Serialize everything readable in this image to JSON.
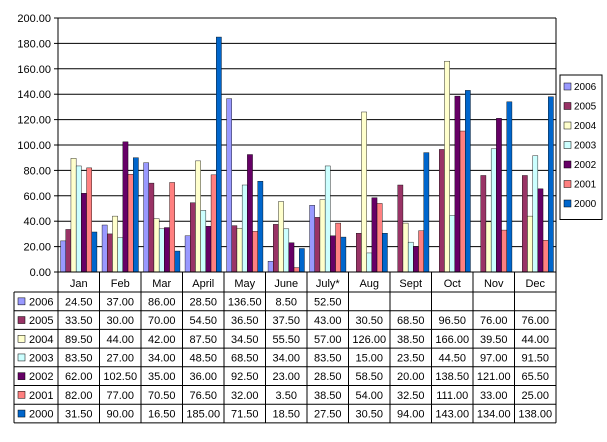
{
  "chart_data": {
    "type": "bar",
    "categories": [
      "Jan",
      "Feb",
      "Mar",
      "April",
      "May",
      "June",
      "July*",
      "Aug",
      "Sept",
      "Oct",
      "Nov",
      "Dec"
    ],
    "ylim": [
      0,
      200
    ],
    "yticks": [
      "0.00",
      "20.00",
      "40.00",
      "60.00",
      "80.00",
      "100.00",
      "120.00",
      "140.00",
      "160.00",
      "180.00",
      "200.00"
    ],
    "grid": true,
    "legend_position": "right",
    "series": [
      {
        "name": "2006",
        "color": "#9999FF",
        "values": [
          24.5,
          37.0,
          86.0,
          28.5,
          136.5,
          8.5,
          52.5,
          null,
          null,
          null,
          null,
          null
        ],
        "labels": [
          "24.50",
          "37.00",
          "86.00",
          "28.50",
          "136.50",
          "8.50",
          "52.50",
          "",
          "",
          "",
          "",
          ""
        ]
      },
      {
        "name": "2005",
        "color": "#993366",
        "values": [
          33.5,
          30.0,
          70.0,
          54.5,
          36.5,
          37.5,
          43.0,
          30.5,
          68.5,
          96.5,
          76.0,
          76.0
        ],
        "labels": [
          "33.50",
          "30.00",
          "70.00",
          "54.50",
          "36.50",
          "37.50",
          "43.00",
          "30.50",
          "68.50",
          "96.50",
          "76.00",
          "76.00"
        ]
      },
      {
        "name": "2004",
        "color": "#FFFFCC",
        "values": [
          89.5,
          44.0,
          42.0,
          87.5,
          34.5,
          55.5,
          57.0,
          126.0,
          38.5,
          166.0,
          39.5,
          44.0
        ],
        "labels": [
          "89.50",
          "44.00",
          "42.00",
          "87.50",
          "34.50",
          "55.50",
          "57.00",
          "126.00",
          "38.50",
          "166.00",
          "39.50",
          "44.00"
        ]
      },
      {
        "name": "2003",
        "color": "#CCFFFF",
        "values": [
          83.5,
          27.0,
          34.0,
          48.5,
          68.5,
          34.0,
          83.5,
          15.0,
          23.5,
          44.5,
          97.0,
          91.5
        ],
        "labels": [
          "83.50",
          "27.00",
          "34.00",
          "48.50",
          "68.50",
          "34.00",
          "83.50",
          "15.00",
          "23.50",
          "44.50",
          "97.00",
          "91.50"
        ]
      },
      {
        "name": "2002",
        "color": "#660066",
        "values": [
          62.0,
          102.5,
          35.0,
          36.0,
          92.5,
          23.0,
          28.5,
          58.5,
          20.0,
          138.5,
          121.0,
          65.5
        ],
        "labels": [
          "62.00",
          "102.50",
          "35.00",
          "36.00",
          "92.50",
          "23.00",
          "28.50",
          "58.50",
          "20.00",
          "138.50",
          "121.00",
          "65.50"
        ]
      },
      {
        "name": "2001",
        "color": "#FF8080",
        "values": [
          82.0,
          77.0,
          70.5,
          76.5,
          32.0,
          3.5,
          38.5,
          54.0,
          32.5,
          111.0,
          33.0,
          25.0
        ],
        "labels": [
          "82.00",
          "77.00",
          "70.50",
          "76.50",
          "32.00",
          "3.50",
          "38.50",
          "54.00",
          "32.50",
          "111.00",
          "33.00",
          "25.00"
        ]
      },
      {
        "name": "2000",
        "color": "#0066CC",
        "values": [
          31.5,
          90.0,
          16.5,
          185.0,
          71.5,
          18.5,
          27.5,
          30.5,
          94.0,
          143.0,
          134.0,
          138.0
        ],
        "labels": [
          "31.50",
          "90.00",
          "16.50",
          "185.00",
          "71.50",
          "18.50",
          "27.50",
          "30.50",
          "94.00",
          "143.00",
          "134.00",
          "138.00"
        ]
      }
    ]
  }
}
